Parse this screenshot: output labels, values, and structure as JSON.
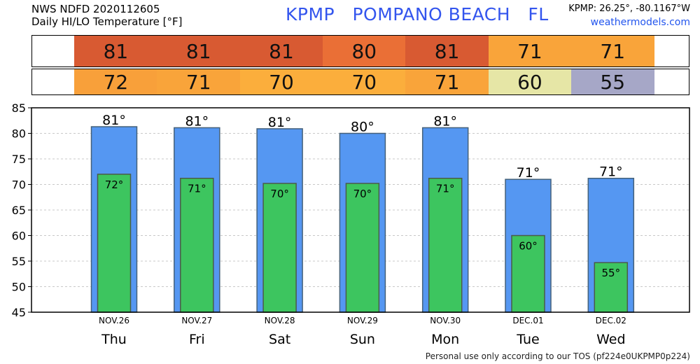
{
  "header": {
    "line1": "NWS NDFD 2020112605",
    "line2": "Daily HI/LO Temperature [°F]",
    "station": "KPMP   POMPANO BEACH   FL",
    "coords": "KPMP: 26.25°, -80.1167°W",
    "site": "weathermodels.com"
  },
  "strips": {
    "hi": [
      {
        "text": "81",
        "color": "#d85a32"
      },
      {
        "text": "81",
        "color": "#d85a32"
      },
      {
        "text": "81",
        "color": "#d85a32"
      },
      {
        "text": "80",
        "color": "#ea6f36"
      },
      {
        "text": "81",
        "color": "#d85a32"
      },
      {
        "text": "71",
        "color": "#f9a43a"
      },
      {
        "text": "71",
        "color": "#f9a43a"
      }
    ],
    "lo": [
      {
        "text": "72",
        "color": "#f8a03a"
      },
      {
        "text": "71",
        "color": "#f9a43a"
      },
      {
        "text": "70",
        "color": "#fbae3c"
      },
      {
        "text": "70",
        "color": "#fbae3c"
      },
      {
        "text": "71",
        "color": "#f9a43a"
      },
      {
        "text": "60",
        "color": "#e6e6a6"
      },
      {
        "text": "55",
        "color": "#a6a7c7"
      }
    ]
  },
  "chart_data": {
    "type": "bar",
    "categories": [
      "Thu",
      "Fri",
      "Sat",
      "Sun",
      "Mon",
      "Tue",
      "Wed"
    ],
    "dates": [
      "NOV.26",
      "NOV.27",
      "NOV.28",
      "NOV.29",
      "NOV.30",
      "DEC.01",
      "DEC.02"
    ],
    "series": [
      {
        "name": "HI",
        "values": [
          81.3,
          81.1,
          80.9,
          80.0,
          81.1,
          71.0,
          71.2
        ],
        "labels": [
          "81°",
          "81°",
          "81°",
          "80°",
          "81°",
          "71°",
          "71°"
        ],
        "color": "#5597f2"
      },
      {
        "name": "LO",
        "values": [
          72.0,
          71.2,
          70.2,
          70.2,
          71.2,
          60.0,
          54.7
        ],
        "labels": [
          "72°",
          "71°",
          "70°",
          "70°",
          "71°",
          "60°",
          "55°"
        ],
        "color": "#3dc55f"
      }
    ],
    "ylim": [
      45,
      85
    ],
    "yticks": [
      "85",
      "80",
      "75",
      "70",
      "65",
      "60",
      "55",
      "50",
      "45"
    ],
    "grid": true
  },
  "footer": "Personal use only according to our TOS (pf224e0UKPMP0p224)"
}
